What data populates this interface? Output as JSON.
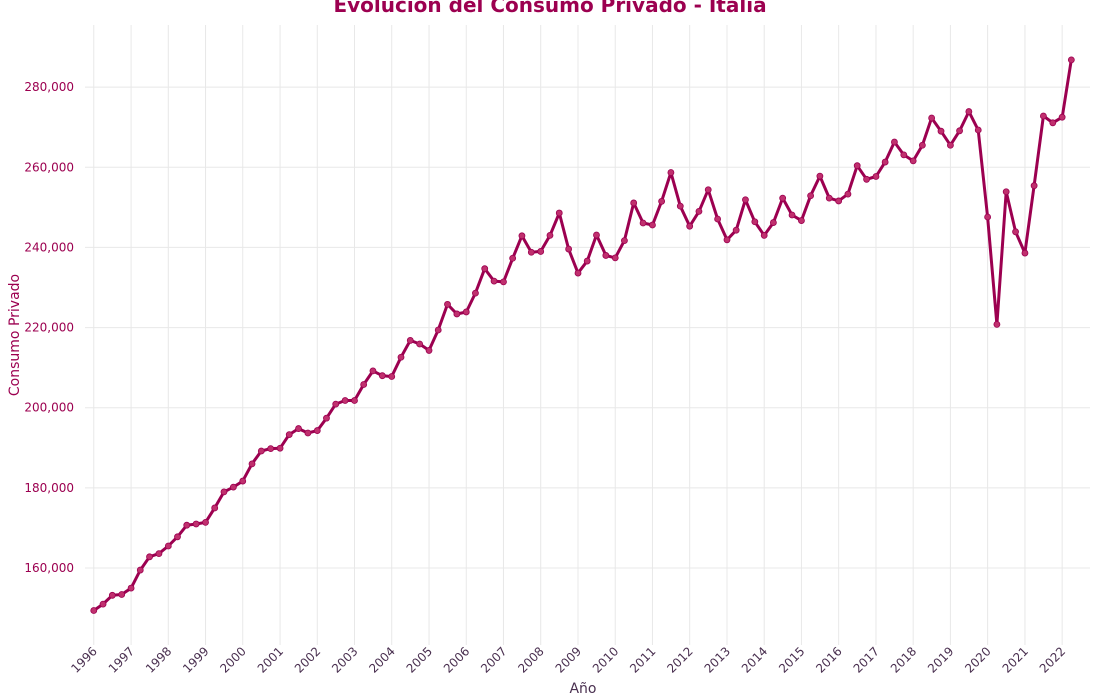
{
  "chart_data": {
    "type": "line",
    "title": "Evolución del Consumo Privado - Italia",
    "xlabel": "Año",
    "ylabel": "Consumo Privado",
    "x_tick_labels": [
      "1996",
      "1997",
      "1998",
      "1999",
      "2000",
      "2001",
      "2002",
      "2003",
      "2004",
      "2005",
      "2006",
      "2007",
      "2008",
      "2009",
      "2010",
      "2011",
      "2012",
      "2013",
      "2014",
      "2015",
      "2016",
      "2017",
      "2018",
      "2019",
      "2020",
      "2021",
      "2022"
    ],
    "y_tick_labels": [
      "160,000",
      "180,000",
      "200,000",
      "220,000",
      "240,000",
      "260,000",
      "280,000"
    ],
    "y_ticks": [
      160000,
      180000,
      200000,
      220000,
      240000,
      260000,
      280000
    ],
    "xlim": [
      "1995-10-07",
      "2022-10-01"
    ],
    "ylim": [
      140800,
      295500
    ],
    "grid": true,
    "colors": {
      "line": "#9c0050",
      "marker": "#c0306e",
      "text": "#9c0050",
      "tick_x": "#4a3050",
      "grid": "#e8e8e8"
    },
    "series": [
      {
        "x": [
          "1996-01-01",
          "1996-04-01",
          "1996-07-01",
          "1996-10-01",
          "1997-01-01",
          "1997-04-01",
          "1997-07-01",
          "1997-10-01",
          "1998-01-01",
          "1998-04-01",
          "1998-07-01",
          "1998-10-01",
          "1999-01-01",
          "1999-04-01",
          "1999-07-01",
          "1999-10-01",
          "2000-01-01",
          "2000-04-01",
          "2000-07-01",
          "2000-10-01",
          "2001-01-01",
          "2001-04-01",
          "2001-07-01",
          "2001-10-01",
          "2002-01-01",
          "2002-04-01",
          "2002-07-01",
          "2002-10-01",
          "2003-01-01",
          "2003-04-01",
          "2003-07-01",
          "2003-10-01",
          "2004-01-01",
          "2004-04-01",
          "2004-07-01",
          "2004-10-01",
          "2005-01-01",
          "2005-04-01",
          "2005-07-01",
          "2005-10-01",
          "2006-01-01",
          "2006-04-01",
          "2006-07-01",
          "2006-10-01",
          "2007-01-01",
          "2007-04-01",
          "2007-07-01",
          "2007-10-01",
          "2008-01-01",
          "2008-04-01",
          "2008-07-01",
          "2008-10-01",
          "2009-01-01",
          "2009-04-01",
          "2009-07-01",
          "2009-10-01",
          "2010-01-01",
          "2010-04-01",
          "2010-07-01",
          "2010-10-01",
          "2011-01-01",
          "2011-04-01",
          "2011-07-01",
          "2011-10-01",
          "2012-01-01",
          "2012-04-01",
          "2012-07-01",
          "2012-10-01",
          "2013-01-01",
          "2013-04-01",
          "2013-07-01",
          "2013-10-01",
          "2014-01-01",
          "2014-04-01",
          "2014-07-01",
          "2014-10-01",
          "2015-01-01",
          "2015-04-01",
          "2015-07-01",
          "2015-10-01",
          "2016-01-01",
          "2016-04-01",
          "2016-07-01",
          "2016-10-01",
          "2017-01-01",
          "2017-04-01",
          "2017-07-01",
          "2017-10-01",
          "2018-01-01",
          "2018-04-01",
          "2018-07-01",
          "2018-10-01",
          "2019-01-01",
          "2019-04-01",
          "2019-07-01",
          "2019-10-01",
          "2020-01-01",
          "2020-04-01",
          "2020-07-01",
          "2020-10-01",
          "2021-01-01",
          "2021-04-01",
          "2021-07-01",
          "2021-10-01",
          "2022-01-01",
          "2022-04-01"
        ],
        "values": [
          149400,
          151000,
          153200,
          153400,
          155000,
          159500,
          162800,
          163600,
          165500,
          167800,
          170700,
          171000,
          171400,
          175000,
          179000,
          180200,
          181700,
          186000,
          189200,
          189800,
          189900,
          193300,
          194800,
          193700,
          194300,
          197400,
          200900,
          201800,
          201800,
          205800,
          209200,
          208000,
          207800,
          212600,
          216800,
          215900,
          214300,
          219400,
          225800,
          223400,
          223900,
          228600,
          234700,
          231600,
          231400,
          237300,
          242900,
          238800,
          239000,
          243000,
          248600,
          239600,
          233600,
          236600,
          243100,
          238000,
          237400,
          241700,
          251100,
          246100,
          245600,
          251500,
          258700,
          250300,
          245300,
          249000,
          254400,
          247100,
          241900,
          244300,
          251900,
          246400,
          243000,
          246200,
          252300,
          248100,
          246700,
          252900,
          257800,
          252300,
          251600,
          253300,
          260400,
          257000,
          257700,
          261300,
          266300,
          263100,
          261600,
          265500,
          272300,
          269000,
          265500,
          269100,
          273900,
          269300,
          247600,
          220800,
          253900,
          243900,
          238600,
          255400,
          272800,
          271100,
          272500,
          286800
        ]
      }
    ]
  }
}
